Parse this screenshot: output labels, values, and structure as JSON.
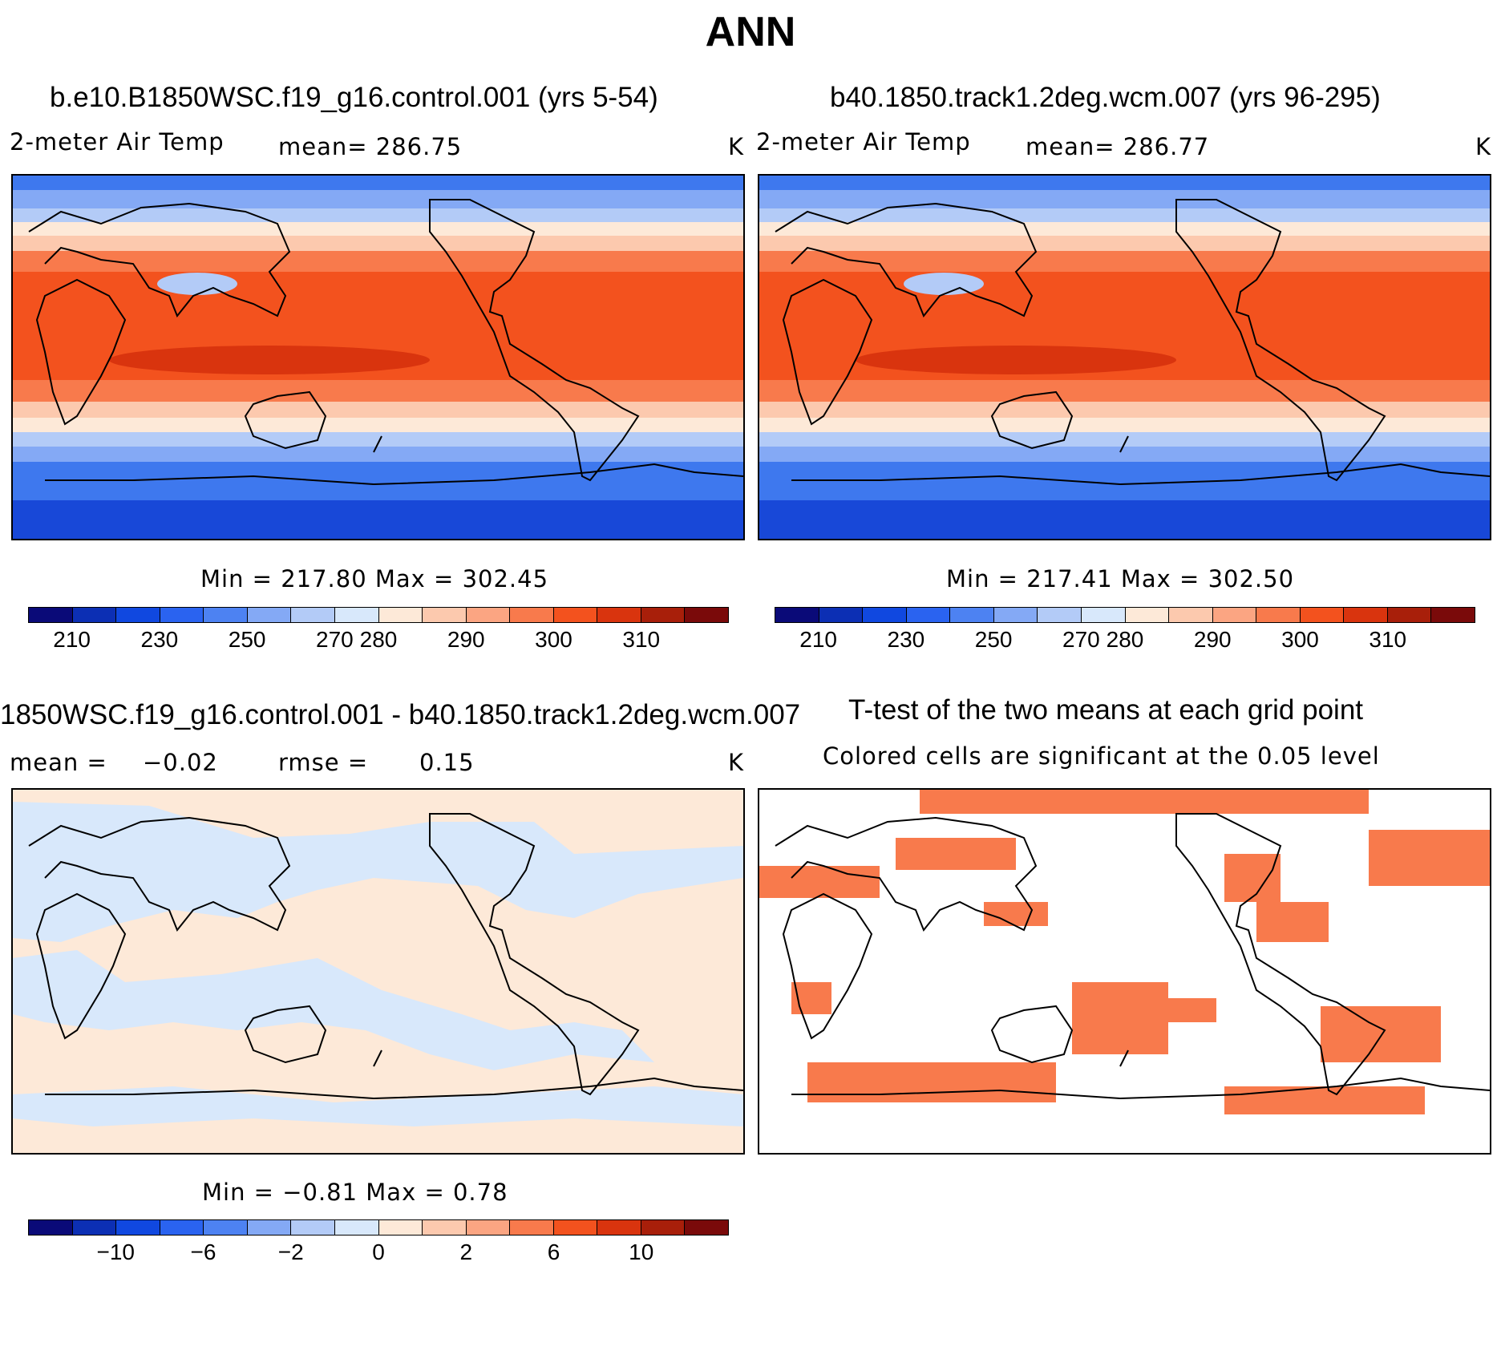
{
  "page_title": "ANN",
  "panels": {
    "top_left": {
      "title": "b.e10.B1850WSC.f19_g16.control.001 (yrs 5-54)",
      "variable": "2-meter Air Temp",
      "mean_text": "mean= 286.75",
      "units": "K",
      "minmax": "Min = 217.80 Max = 302.45"
    },
    "top_right": {
      "title": "b40.1850.track1.2deg.wcm.007 (yrs 96-295)",
      "variable": "2-meter Air Temp",
      "mean_text": "mean= 286.77",
      "units": "K",
      "minmax": "Min = 217.41 Max = 302.50"
    },
    "bottom_left": {
      "title": "1850WSC.f19_g16.control.001 - b40.1850.track1.2deg.wcm.007",
      "mean_label": "mean =",
      "mean_value": "−0.02",
      "rmse_label": "rmse =",
      "rmse_value": "0.15",
      "units": "K",
      "minmax": "Min =  −0.81 Max =    0.78"
    },
    "bottom_right": {
      "title": "T-test of the two means at each grid point",
      "subtitle": "Colored cells are significant at the 0.05 level"
    }
  },
  "colorbars": {
    "temperature": {
      "colors": [
        "#0a0a78",
        "#0c2fb4",
        "#1048e0",
        "#2a63f0",
        "#4d82f2",
        "#84a9f5",
        "#b3cbf7",
        "#d8e8fb",
        "#fde9d8",
        "#fcc9ae",
        "#fba582",
        "#f87a4c",
        "#f3521e",
        "#d9340e",
        "#a81f0a",
        "#7a0a0a"
      ],
      "ticks": [
        "210",
        "230",
        "250",
        "270",
        "280",
        "290",
        "300",
        "310"
      ]
    },
    "difference": {
      "colors": [
        "#0a0a78",
        "#0c2fb4",
        "#1048e0",
        "#2a63f0",
        "#4d82f2",
        "#84a9f5",
        "#b3cbf7",
        "#d8e8fb",
        "#fde9d8",
        "#fcc9ae",
        "#fba582",
        "#f87a4c",
        "#f3521e",
        "#d9340e",
        "#a81f0a",
        "#7a0a0a"
      ],
      "ticks": [
        "−10",
        "−6",
        "−2",
        "0",
        "2",
        "6",
        "10"
      ]
    }
  },
  "map_colors": {
    "polar_south": "#1848d8",
    "cold": "#3e78ee",
    "cool": "#84a9f5",
    "chill": "#b3cbf7",
    "mild": "#fde9d8",
    "warm_light": "#fcc9ae",
    "warm": "#f87a4c",
    "hot": "#f3521e",
    "hottest": "#d9340e",
    "diff_pos": "#fde9d8",
    "diff_neg": "#d8e8fb",
    "signif": "#f87a4c"
  }
}
